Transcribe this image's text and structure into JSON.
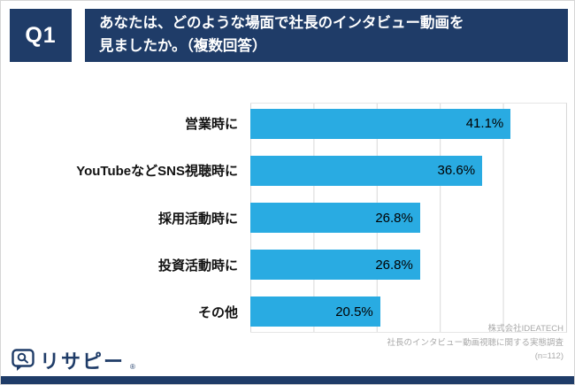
{
  "header": {
    "q_label": "Q1",
    "title_line1": "あなたは、どのような場面で社長のインタビュー動画を",
    "title_line2": "見ましたか。（複数回答）"
  },
  "chart_data": {
    "type": "bar",
    "orientation": "horizontal",
    "title": "あなたは、どのような場面で社長のインタビュー動画を見ましたか。（複数回答）",
    "categories": [
      "営業時に",
      "YouTubeなどSNS視聴時に",
      "採用活動時に",
      "投資活動時に",
      "その他"
    ],
    "values": [
      41.1,
      36.6,
      26.8,
      26.8,
      20.5
    ],
    "value_labels": [
      "41.1%",
      "36.6%",
      "26.8%",
      "26.8%",
      "20.5%"
    ],
    "xlabel": "",
    "ylabel": "",
    "xlim": [
      0,
      50
    ],
    "grid": true,
    "legend": false
  },
  "footer": {
    "source_line1": "株式会社IDEATECH",
    "source_line2": "社長のインタビュー動画視聴に関する実態調査",
    "source_line3": "(n=112)",
    "logo_text": "リサピー",
    "logo_reg": "®"
  },
  "colors": {
    "navy": "#1F3C68",
    "bar_blue": "#29ABE2",
    "gridline": "#d9d9d9",
    "footer_gray": "#a9a9a9"
  }
}
